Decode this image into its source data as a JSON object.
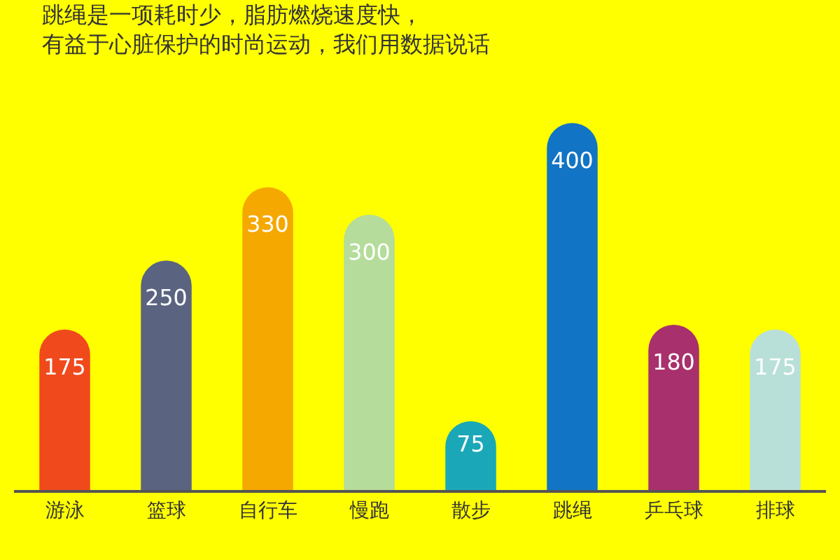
{
  "chart_data": {
    "type": "bar",
    "title": "跳绳是一项耗时少，脂肪燃烧速度快，有益于心脏保护的时尚运动，我们用数据说话",
    "categories": [
      "游泳",
      "篮球",
      "自行车",
      "慢跑",
      "散步",
      "跳绳",
      "乒乓球",
      "排球"
    ],
    "values": [
      175,
      250,
      330,
      300,
      75,
      400,
      180,
      175
    ],
    "colors": [
      "#f04a1c",
      "#5a6480",
      "#f5a800",
      "#b5dc9a",
      "#1aa8b8",
      "#1274c4",
      "#a8306c",
      "#b8e0d8"
    ],
    "data_labels": true,
    "grid": false
  }
}
